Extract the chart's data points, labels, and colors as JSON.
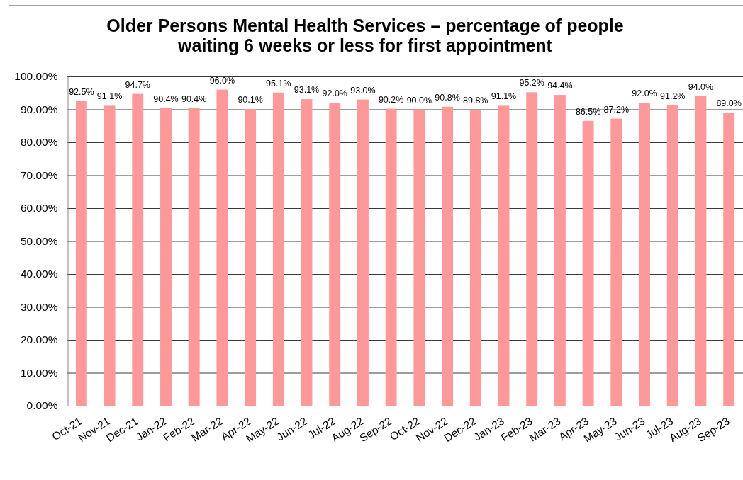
{
  "chart_data": {
    "type": "bar",
    "title": "Older Persons Mental Health Services – percentage of people waiting 6 weeks or less for first appointment",
    "categories": [
      "Oct-21",
      "Nov-21",
      "Dec-21",
      "Jan-22",
      "Feb-22",
      "Mar-22",
      "Apr-22",
      "May-22",
      "Jun-22",
      "Jul-22",
      "Aug-22",
      "Sep-22",
      "Oct-22",
      "Nov-22",
      "Dec-22",
      "Jan-23",
      "Feb-23",
      "Mar-23",
      "Apr-23",
      "May-23",
      "Jun-23",
      "Jul-23",
      "Aug-23",
      "Sep-23"
    ],
    "values": [
      92.5,
      91.1,
      94.7,
      90.4,
      90.4,
      96.0,
      90.1,
      95.1,
      93.1,
      92.0,
      93.0,
      90.2,
      90.0,
      90.8,
      89.8,
      91.1,
      95.2,
      94.4,
      86.5,
      87.2,
      92.0,
      91.2,
      94.0,
      89.0
    ],
    "value_labels": [
      "92.5%",
      "91.1%",
      "94.7%",
      "90.4%",
      "90.4%",
      "96.0%",
      "90.1%",
      "95.1%",
      "93.1%",
      "92.0%",
      "93.0%",
      "90.2%",
      "90.0%",
      "90.8%",
      "89.8%",
      "91.1%",
      "95.2%",
      "94.4%",
      "86.5%",
      "87.2%",
      "92.0%",
      "91.2%",
      "94.0%",
      "89.0%"
    ],
    "color": "#ff9999",
    "ylim": [
      0,
      100
    ],
    "yticks": [
      {
        "value": 0,
        "label": "0.00%"
      },
      {
        "value": 10,
        "label": "10.00%"
      },
      {
        "value": 20,
        "label": "20.00%"
      },
      {
        "value": 30,
        "label": "30.00%"
      },
      {
        "value": 40,
        "label": "40.00%"
      },
      {
        "value": 50,
        "label": "50.00%"
      },
      {
        "value": 60,
        "label": "60.00%"
      },
      {
        "value": 70,
        "label": "70.00%"
      },
      {
        "value": 80,
        "label": "80.00%"
      },
      {
        "value": 90,
        "label": "90.00%"
      },
      {
        "value": 100,
        "label": "100.00%"
      }
    ],
    "grid": "y"
  }
}
